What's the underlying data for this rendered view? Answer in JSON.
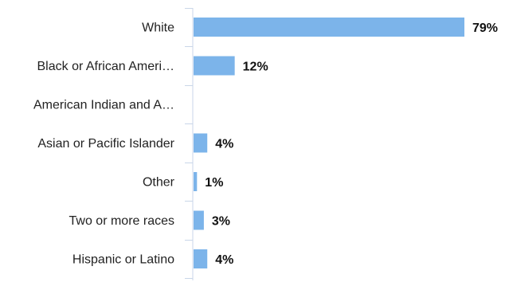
{
  "chart_data": {
    "type": "bar",
    "orientation": "horizontal",
    "categories": [
      "White",
      "Black or African Ameri…",
      "American Indian and A…",
      "Asian or Pacific Islander",
      "Other",
      "Two or more races",
      "Hispanic or Latino"
    ],
    "values": [
      79,
      12,
      0,
      4,
      1,
      3,
      4
    ],
    "value_labels": [
      "79%",
      "12%",
      "",
      "4%",
      "1%",
      "3%",
      "4%"
    ],
    "unit": "%",
    "title": "",
    "xlabel": "",
    "ylabel": "",
    "xlim": [
      0,
      79
    ],
    "grid": false,
    "legend": "none",
    "colors": {
      "bar": "#7cb4ea",
      "axis": "#c9d6e8"
    }
  }
}
